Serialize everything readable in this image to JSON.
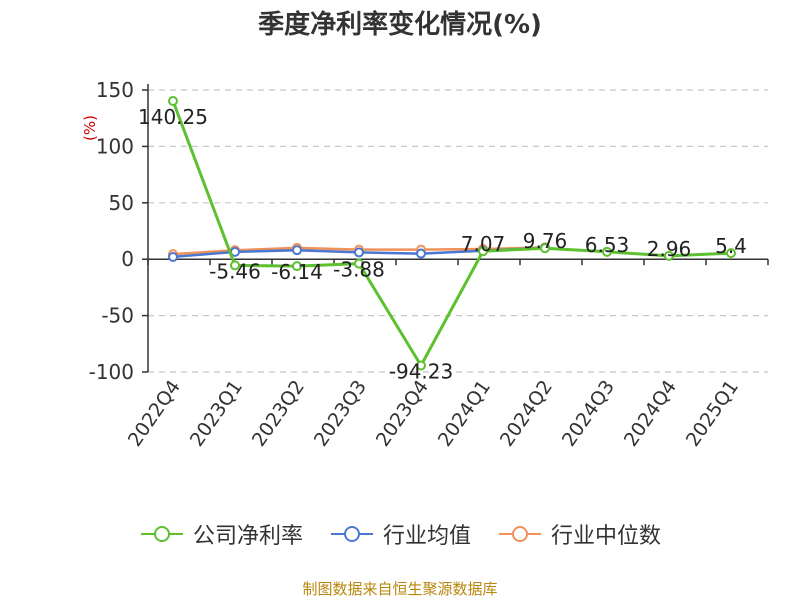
{
  "chart_data": {
    "type": "line",
    "title": "季度净利率变化情况(%)",
    "ylabel": "(%)",
    "xlabel": "",
    "ylim": [
      -100,
      150
    ],
    "yticks": [
      150,
      100,
      50,
      0,
      -50,
      -100
    ],
    "categories": [
      "2022Q4",
      "2023Q1",
      "2023Q2",
      "2023Q3",
      "2023Q4",
      "2024Q1",
      "2024Q2",
      "2024Q3",
      "2024Q4",
      "2025Q1"
    ],
    "series": [
      {
        "name": "公司净利率",
        "color": "#5cc02f",
        "values": [
          140.25,
          -5.46,
          -6.14,
          -3.88,
          -94.23,
          7.07,
          9.76,
          6.53,
          2.96,
          5.4
        ],
        "labels": [
          "140.25",
          "-5.46",
          "-6.14",
          "-3.88",
          "-94.23",
          "7.07",
          "9.76",
          "6.53",
          "2.96",
          "5.4"
        ]
      },
      {
        "name": "行业均值",
        "color": "#4a78d0",
        "values": [
          2,
          6.5,
          8,
          6,
          5,
          7.5,
          10,
          null,
          null,
          null
        ]
      },
      {
        "name": "行业中位数",
        "color": "#f0915a",
        "values": [
          4.5,
          8,
          10,
          8.5,
          8.5,
          9,
          10.5,
          null,
          null,
          null
        ]
      }
    ],
    "grid": true,
    "legend_position": "bottom"
  },
  "source_note": "制图数据来自恒生聚源数据库"
}
